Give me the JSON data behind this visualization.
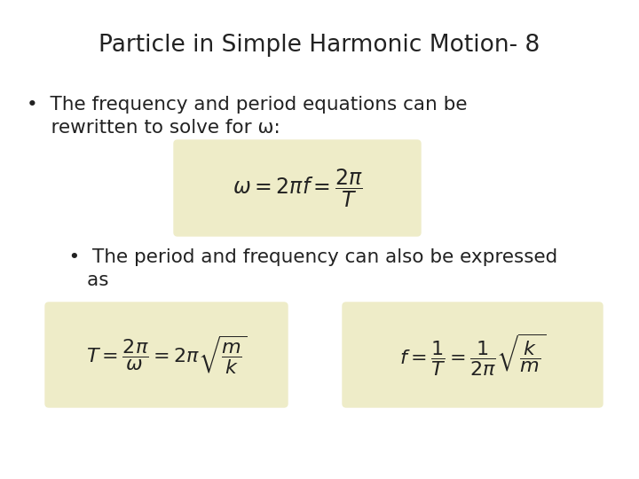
{
  "title": "Particle in Simple Harmonic Motion- 8",
  "title_fontsize": 19,
  "title_color": "#222222",
  "background_color": "#ffffff",
  "box_color": "#eeecc8",
  "bullet1_line1": "•  The frequency and period equations can be",
  "bullet1_line2": "    rewritten to solve for ω:",
  "formula1": "$\\omega = 2\\pi f = \\dfrac{2\\pi}{T}$",
  "bullet2_line1": "    •  The period and frequency can also be expressed",
  "bullet2_line2": "       as",
  "formula2": "$T = \\dfrac{2\\pi}{\\omega} = 2\\pi\\sqrt{\\dfrac{m}{k}}$",
  "formula3": "$f = \\dfrac{1}{T} = \\dfrac{1}{2\\pi}\\sqrt{\\dfrac{k}{m}}$",
  "text_fontsize": 15.5,
  "formula1_fontsize": 17,
  "formula23_fontsize": 16
}
